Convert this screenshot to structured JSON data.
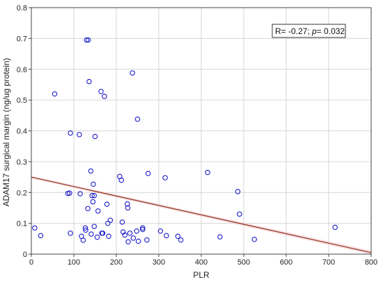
{
  "chart_data": {
    "type": "scatter",
    "xlabel": "PLR",
    "ylabel": "ADAM17 surgical margin (ng/ug protein)",
    "xlim": [
      0,
      800
    ],
    "ylim": [
      0,
      0.8
    ],
    "x_ticks": [
      "0",
      "100",
      "200",
      "300",
      "400",
      "500",
      "600",
      "700",
      "800"
    ],
    "y_ticks": [
      "0",
      "0.1",
      "0.2",
      "0.3",
      "0.4",
      "0.5",
      "0.6",
      "0.7",
      "0.8"
    ],
    "grid": true,
    "annotation": {
      "prefix": "R= -0.27; ",
      "p_symbol": "p",
      "suffix": "= 0.032",
      "placement": "top-right"
    },
    "regression_line": {
      "x": [
        0,
        800
      ],
      "y": [
        0.25,
        0.005
      ],
      "color": "#8b2b1c"
    },
    "marker_color": "#1c1cc8",
    "points": [
      {
        "x": 8,
        "y": 0.085
      },
      {
        "x": 22,
        "y": 0.06
      },
      {
        "x": 55,
        "y": 0.52
      },
      {
        "x": 86,
        "y": 0.197
      },
      {
        "x": 90,
        "y": 0.198
      },
      {
        "x": 92,
        "y": 0.393
      },
      {
        "x": 92,
        "y": 0.068
      },
      {
        "x": 113,
        "y": 0.388
      },
      {
        "x": 115,
        "y": 0.196
      },
      {
        "x": 118,
        "y": 0.058
      },
      {
        "x": 122,
        "y": 0.045
      },
      {
        "x": 127,
        "y": 0.085
      },
      {
        "x": 128,
        "y": 0.078
      },
      {
        "x": 130,
        "y": 0.695
      },
      {
        "x": 134,
        "y": 0.695
      },
      {
        "x": 133,
        "y": 0.148
      },
      {
        "x": 136,
        "y": 0.56
      },
      {
        "x": 140,
        "y": 0.27
      },
      {
        "x": 141,
        "y": 0.065
      },
      {
        "x": 143,
        "y": 0.19
      },
      {
        "x": 145,
        "y": 0.17
      },
      {
        "x": 146,
        "y": 0.227
      },
      {
        "x": 148,
        "y": 0.19
      },
      {
        "x": 148,
        "y": 0.09
      },
      {
        "x": 150,
        "y": 0.382
      },
      {
        "x": 155,
        "y": 0.055
      },
      {
        "x": 157,
        "y": 0.14
      },
      {
        "x": 164,
        "y": 0.528
      },
      {
        "x": 166,
        "y": 0.068
      },
      {
        "x": 168,
        "y": 0.068
      },
      {
        "x": 172,
        "y": 0.512
      },
      {
        "x": 178,
        "y": 0.162
      },
      {
        "x": 180,
        "y": 0.1
      },
      {
        "x": 182,
        "y": 0.058
      },
      {
        "x": 186,
        "y": 0.11
      },
      {
        "x": 208,
        "y": 0.252
      },
      {
        "x": 212,
        "y": 0.24
      },
      {
        "x": 214,
        "y": 0.104
      },
      {
        "x": 216,
        "y": 0.072
      },
      {
        "x": 220,
        "y": 0.062
      },
      {
        "x": 226,
        "y": 0.163
      },
      {
        "x": 227,
        "y": 0.15
      },
      {
        "x": 228,
        "y": 0.04
      },
      {
        "x": 232,
        "y": 0.068
      },
      {
        "x": 238,
        "y": 0.588
      },
      {
        "x": 240,
        "y": 0.052
      },
      {
        "x": 248,
        "y": 0.075
      },
      {
        "x": 250,
        "y": 0.438
      },
      {
        "x": 252,
        "y": 0.042
      },
      {
        "x": 262,
        "y": 0.08
      },
      {
        "x": 262,
        "y": 0.085
      },
      {
        "x": 272,
        "y": 0.046
      },
      {
        "x": 275,
        "y": 0.262
      },
      {
        "x": 304,
        "y": 0.075
      },
      {
        "x": 315,
        "y": 0.248
      },
      {
        "x": 318,
        "y": 0.06
      },
      {
        "x": 345,
        "y": 0.058
      },
      {
        "x": 352,
        "y": 0.046
      },
      {
        "x": 415,
        "y": 0.265
      },
      {
        "x": 444,
        "y": 0.056
      },
      {
        "x": 486,
        "y": 0.203
      },
      {
        "x": 490,
        "y": 0.13
      },
      {
        "x": 525,
        "y": 0.048
      },
      {
        "x": 715,
        "y": 0.087
      }
    ]
  }
}
